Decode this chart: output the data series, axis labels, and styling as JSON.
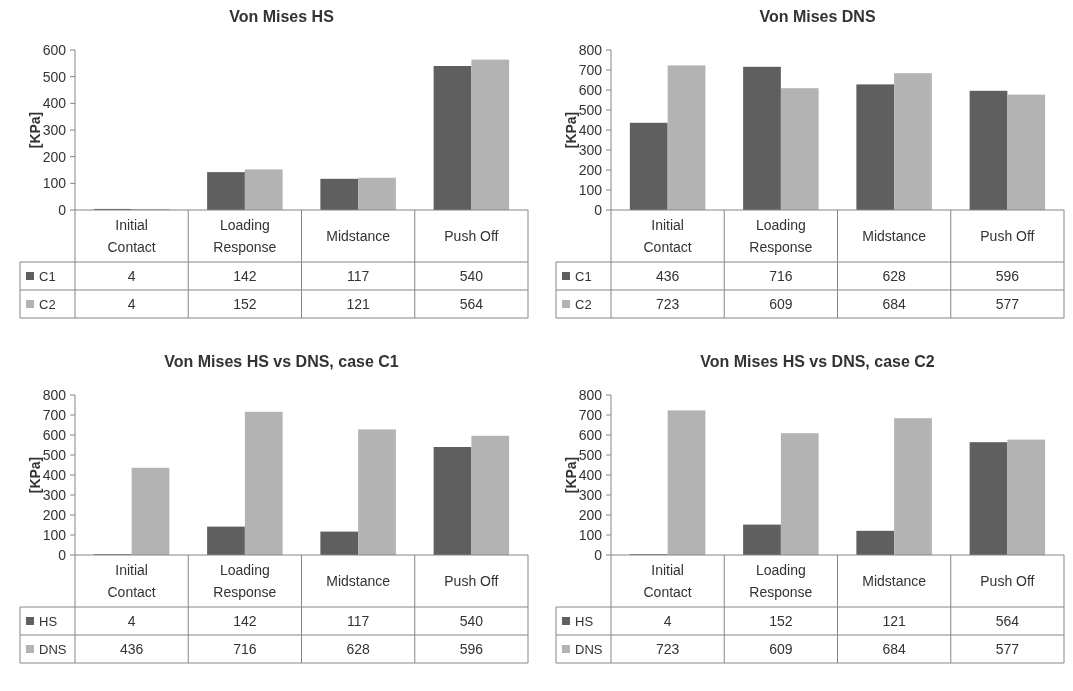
{
  "chart_data": [
    {
      "type": "bar",
      "title": "Von Mises HS",
      "ylabel": "[KPa]",
      "categories": [
        "Initial Contact",
        "Loading Response",
        "Midstance",
        "Push Off"
      ],
      "series": [
        {
          "name": "C1",
          "color": "#5f5f5f",
          "values": [
            4,
            142,
            117,
            540
          ]
        },
        {
          "name": "C2",
          "color": "#b3b3b3",
          "values": [
            4,
            152,
            121,
            564
          ]
        }
      ],
      "ylim": [
        0,
        600
      ],
      "yticks": [
        0,
        100,
        200,
        300,
        400,
        500,
        600
      ],
      "data_labels": true,
      "legend": "bottom left"
    },
    {
      "type": "bar",
      "title": "Von Mises DNS",
      "ylabel": "[KPa]",
      "categories": [
        "Initial Contact",
        "Loading Response",
        "Midstance",
        "Push Off"
      ],
      "series": [
        {
          "name": "C1",
          "color": "#5f5f5f",
          "values": [
            436,
            716,
            628,
            596
          ]
        },
        {
          "name": "C2",
          "color": "#b3b3b3",
          "values": [
            723,
            609,
            684,
            577
          ]
        }
      ],
      "ylim": [
        0,
        800
      ],
      "yticks": [
        0,
        100,
        200,
        300,
        400,
        500,
        600,
        700,
        800
      ],
      "data_labels": true,
      "legend": "bottom left"
    },
    {
      "type": "bar",
      "title": "Von Mises HS vs DNS, case C1",
      "ylabel": "[KPa]",
      "categories": [
        "Initial Contact",
        "Loading Response",
        "Midstance",
        "Push Off"
      ],
      "series": [
        {
          "name": "HS",
          "color": "#5f5f5f",
          "values": [
            4,
            142,
            117,
            540
          ]
        },
        {
          "name": "DNS",
          "color": "#b3b3b3",
          "values": [
            436,
            716,
            628,
            596
          ]
        }
      ],
      "ylim": [
        0,
        800
      ],
      "yticks": [
        0,
        100,
        200,
        300,
        400,
        500,
        600,
        700,
        800
      ],
      "data_labels": true,
      "legend": "bottom left"
    },
    {
      "type": "bar",
      "title": "Von Mises HS vs DNS, case C2",
      "ylabel": "[KPa]",
      "categories": [
        "Initial Contact",
        "Loading Response",
        "Midstance",
        "Push Off"
      ],
      "series": [
        {
          "name": "HS",
          "color": "#5f5f5f",
          "values": [
            4,
            152,
            121,
            564
          ]
        },
        {
          "name": "DNS",
          "color": "#b3b3b3",
          "values": [
            723,
            609,
            684,
            577
          ]
        }
      ],
      "ylim": [
        0,
        800
      ],
      "yticks": [
        0,
        100,
        200,
        300,
        400,
        500,
        600,
        700,
        800
      ],
      "data_labels": true,
      "legend": "bottom left"
    }
  ]
}
